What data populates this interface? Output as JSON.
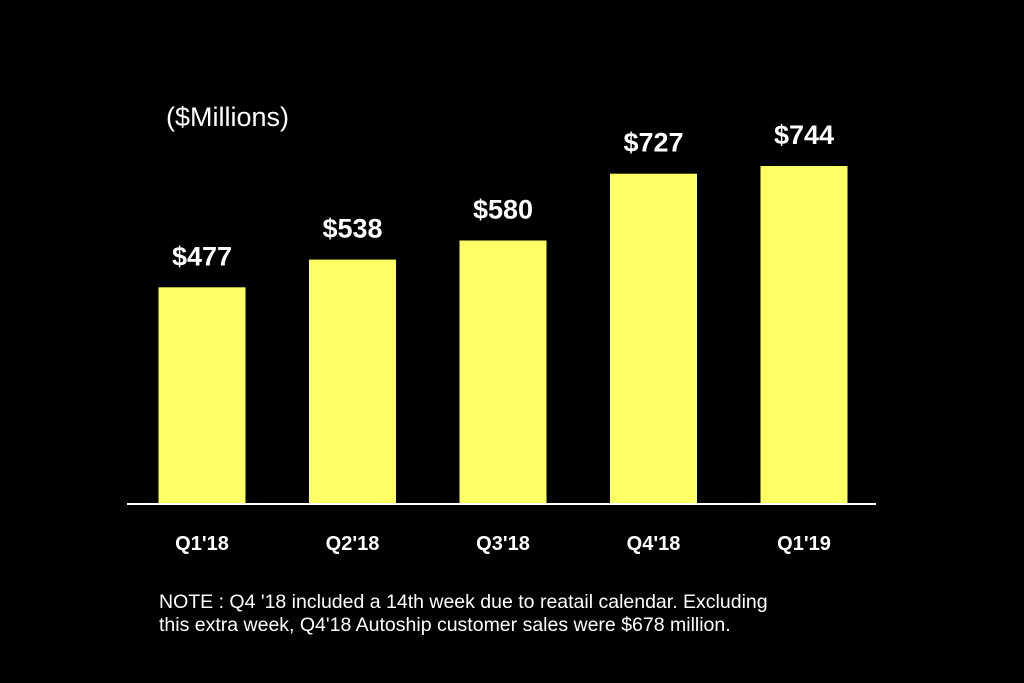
{
  "chart_data": {
    "type": "bar",
    "title": "",
    "unit_label": "($Millions)",
    "categories": [
      "Q1'18",
      "Q2'18",
      "Q3'18",
      "Q4'18",
      "Q1'19"
    ],
    "values": [
      477,
      538,
      580,
      727,
      744
    ],
    "data_labels": [
      "$477",
      "$538",
      "$580",
      "$727",
      "$744"
    ],
    "xlabel": "",
    "ylabel": "",
    "ylim": [
      0,
      744
    ],
    "grid": false,
    "legend": "none",
    "colors": {
      "bar": "#ffff66",
      "background": "#000000",
      "text": "#ffffff",
      "axis": "#ffffff"
    }
  },
  "note": {
    "line1": "NOTE : Q4 '18 included a 14th week due to reatail calendar. Excluding",
    "line2": "this extra week, Q4'18 Autoship customer sales were $678 million."
  }
}
